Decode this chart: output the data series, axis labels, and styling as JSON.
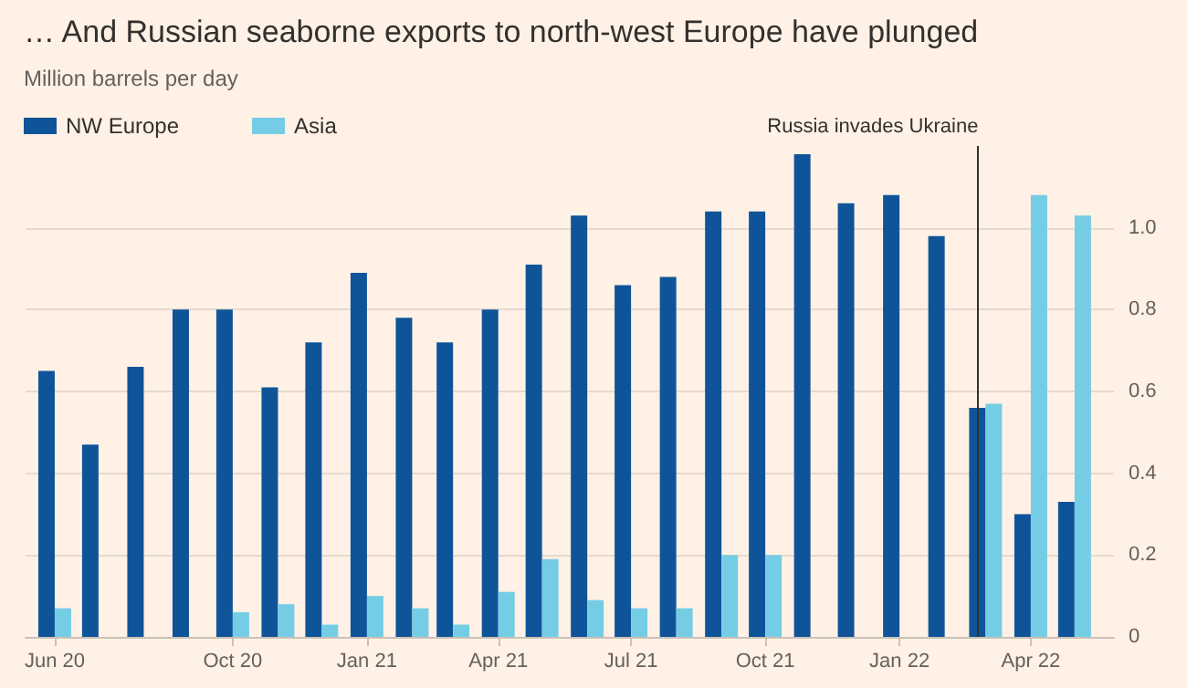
{
  "chart_data": {
    "type": "bar",
    "title": "… And Russian seaborne exports to north-west Europe have plunged",
    "ylabel": "Million barrels per day",
    "x": [
      "2020-06",
      "2020-07",
      "2020-08",
      "2020-09",
      "2020-10",
      "2020-11",
      "2020-12",
      "2021-01",
      "2021-02",
      "2021-03",
      "2021-04",
      "2021-05",
      "2021-06",
      "2021-07",
      "2021-08",
      "2021-09",
      "2021-10",
      "2021-11",
      "2021-12",
      "2022-01",
      "2022-02",
      "2022-03",
      "2022-04",
      "2022-05"
    ],
    "series": [
      {
        "name": "NW Europe",
        "color": "#0f5499",
        "values": [
          0.65,
          0.47,
          0.66,
          0.8,
          0.8,
          0.61,
          0.72,
          0.89,
          0.78,
          0.72,
          0.8,
          0.91,
          1.03,
          0.86,
          0.88,
          1.04,
          1.04,
          1.18,
          1.06,
          1.08,
          0.98,
          0.56,
          0.3,
          0.33
        ]
      },
      {
        "name": "Asia",
        "color": "#75cde5",
        "values": [
          0.07,
          null,
          null,
          null,
          0.06,
          0.08,
          0.03,
          0.1,
          0.07,
          0.03,
          0.11,
          0.19,
          0.09,
          0.07,
          0.07,
          0.2,
          0.2,
          null,
          null,
          null,
          null,
          0.57,
          1.08,
          1.03
        ]
      }
    ],
    "xlim": [
      "2020-05-12",
      "2022-05-28"
    ],
    "xticks": [
      {
        "value": "2020-06",
        "label": "Jun 20"
      },
      {
        "value": "2020-10",
        "label": "Oct 20"
      },
      {
        "value": "2021-01",
        "label": "Jan 21"
      },
      {
        "value": "2021-04",
        "label": "Apr 21"
      },
      {
        "value": "2021-07",
        "label": "Jul 21"
      },
      {
        "value": "2021-10",
        "label": "Oct 21"
      },
      {
        "value": "2022-01",
        "label": "Jan 22"
      },
      {
        "value": "2022-04",
        "label": "Apr 22"
      }
    ],
    "ylim": [
      0,
      1.2
    ],
    "yticks": [
      0,
      0.2,
      0.4,
      0.6,
      0.8,
      {
        "value": 1,
        "label": "1.0"
      }
    ],
    "ref_lines": [
      {
        "axis": "x",
        "value": "2022-02-24",
        "label": "Russia invades Ukraine",
        "color": "#33302e"
      }
    ],
    "grid": "y",
    "legend": "top left"
  }
}
